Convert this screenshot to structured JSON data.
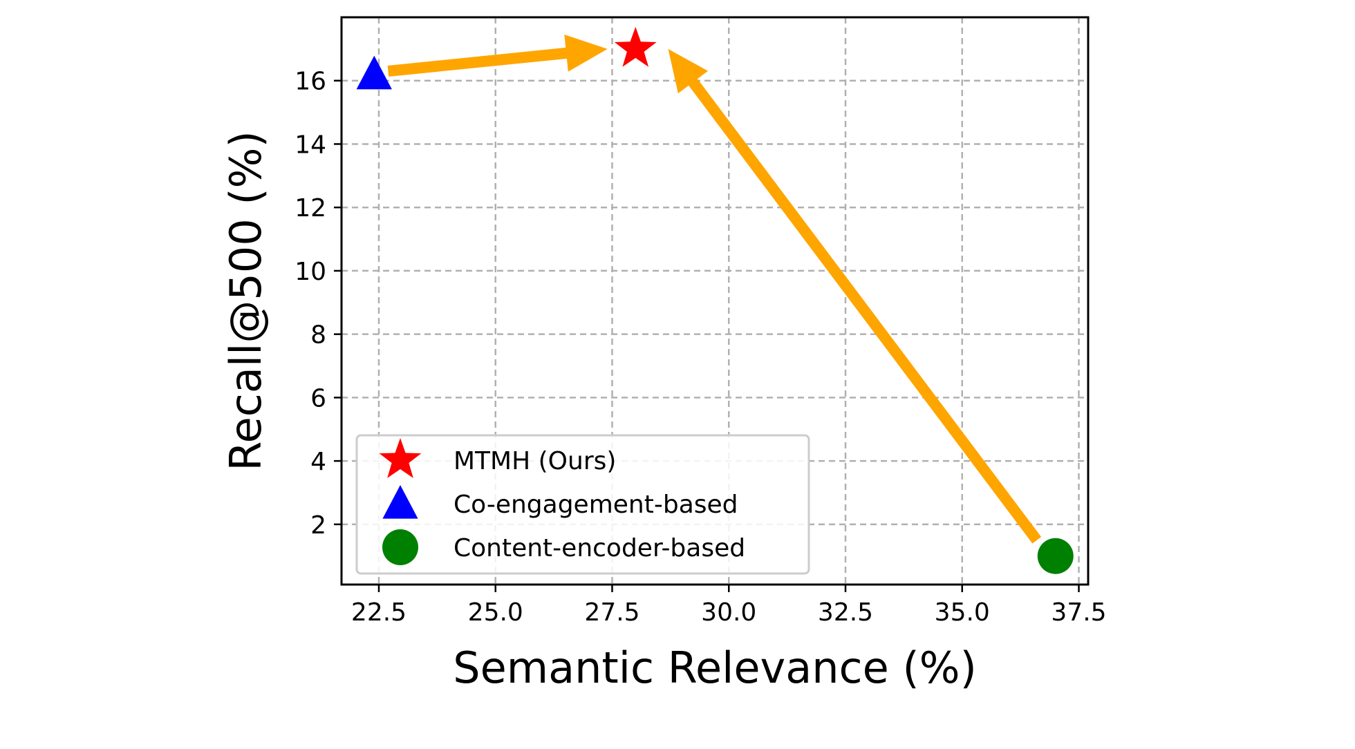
{
  "chart_data": {
    "type": "scatter",
    "xlabel": "Semantic Relevance (%)",
    "ylabel": "Recall@500 (%)",
    "xlim": [
      21.7,
      37.7
    ],
    "ylim": [
      0.1,
      18.0
    ],
    "xticks": [
      22.5,
      25.0,
      27.5,
      30.0,
      32.5,
      35.0,
      37.5
    ],
    "xtick_labels": [
      "22.5",
      "25.0",
      "27.5",
      "30.0",
      "32.5",
      "35.0",
      "37.5"
    ],
    "yticks": [
      2,
      4,
      6,
      8,
      10,
      12,
      14,
      16
    ],
    "ytick_labels": [
      "2",
      "4",
      "6",
      "8",
      "10",
      "12",
      "14",
      "16"
    ],
    "grid": true,
    "grid_style": "dashed",
    "legend_position": "lower-left",
    "series": [
      {
        "name": "MTMH (Ours)",
        "marker": "star",
        "color": "#ff0000",
        "x": [
          28.0
        ],
        "y": [
          17.0
        ]
      },
      {
        "name": "Co-engagement-based",
        "marker": "triangle",
        "color": "#0000ff",
        "x": [
          22.4
        ],
        "y": [
          16.2
        ]
      },
      {
        "name": "Content-encoder-based",
        "marker": "circle",
        "color": "#008000",
        "x": [
          37.0
        ],
        "y": [
          1.0
        ]
      }
    ],
    "arrows": [
      {
        "from": [
          22.7,
          16.3
        ],
        "to": [
          27.4,
          17.0
        ],
        "color": "#ffa500"
      },
      {
        "from": [
          36.6,
          1.5
        ],
        "to": [
          28.7,
          17.0
        ],
        "color": "#ffa500"
      }
    ]
  }
}
